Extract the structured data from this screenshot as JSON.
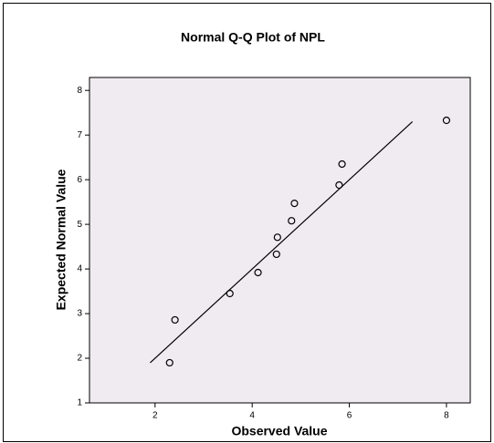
{
  "chart_data": {
    "type": "scatter",
    "title": "Normal Q-Q Plot of NPL",
    "xlabel": "Observed Value",
    "ylabel": "Expected Normal Value",
    "x": [
      2.3,
      2.41,
      3.54,
      4.12,
      4.5,
      4.52,
      4.81,
      4.87,
      5.79,
      5.85,
      8.0
    ],
    "values": [
      1.9,
      2.86,
      3.45,
      3.92,
      4.33,
      4.71,
      5.08,
      5.47,
      5.88,
      6.35,
      7.33
    ],
    "color": "#000000",
    "background": "#f0ebf0",
    "reference_line": {
      "x": [
        1.9,
        7.3
      ],
      "y": [
        1.9,
        7.3
      ]
    },
    "xlim": [
      0.65,
      8.49
    ],
    "xticks": [
      2,
      4,
      6,
      8
    ],
    "ylim": [
      1,
      8.29
    ],
    "yticks": [
      1,
      2,
      3,
      4,
      5,
      6,
      7,
      8
    ]
  }
}
